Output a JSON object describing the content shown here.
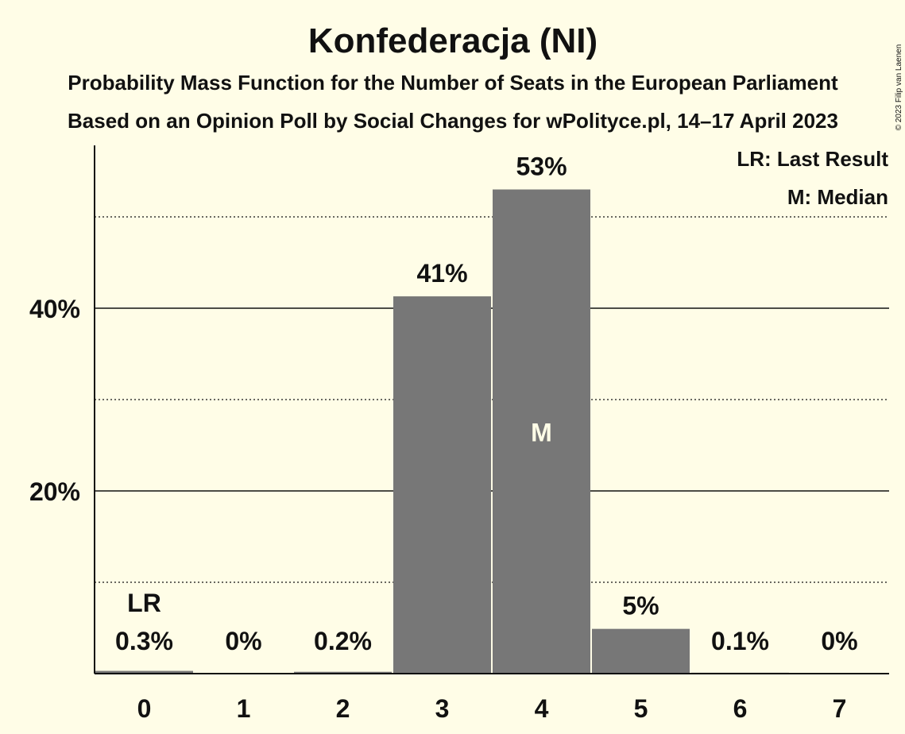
{
  "chart_data": {
    "type": "bar",
    "title": "Konfederacja (NI)",
    "subtitle": "Probability Mass Function for the Number of Seats in the European Parliament",
    "subtitle2": "Based on an Opinion Poll by Social Changes for wPolityce.pl, 14–17 April 2023",
    "copyright": "© 2023 Filip van Laenen",
    "categories": [
      "0",
      "1",
      "2",
      "3",
      "4",
      "5",
      "6",
      "7"
    ],
    "values": [
      0.3,
      0,
      0.2,
      41.3,
      53,
      4.9,
      0.1,
      0
    ],
    "labels": [
      "0.3%",
      "0%",
      "0.2%",
      "41%",
      "53%",
      "5%",
      "0.1%",
      "0%"
    ],
    "ylim": [
      0,
      58
    ],
    "yticks": [
      {
        "value": 20,
        "label": "20%"
      },
      {
        "value": 40,
        "label": "40%"
      }
    ],
    "minor_gridlines": [
      10,
      30,
      50
    ],
    "last_result_index": 0,
    "last_result_label": "LR",
    "median_index": 4,
    "median_label": "M",
    "legend": [
      "LR: Last Result",
      "M: Median"
    ],
    "legend_position": "top-right",
    "bar_color": "#777777",
    "background_color": "#FFFDE7"
  }
}
